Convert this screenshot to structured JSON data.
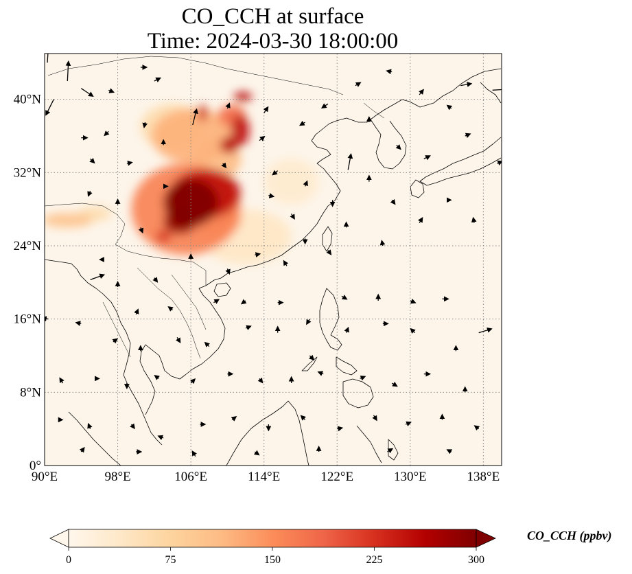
{
  "title": {
    "line1": "CO_CCH at surface",
    "line2": "Time: 2024-03-30 18:00:00"
  },
  "map": {
    "extent": {
      "lon_min": 90,
      "lon_max": 140,
      "lat_min": 0,
      "lat_max": 45
    },
    "lon_ticks": [
      {
        "value": 90,
        "label": "90°E"
      },
      {
        "value": 98,
        "label": "98°E"
      },
      {
        "value": 106,
        "label": "106°E"
      },
      {
        "value": 114,
        "label": "114°E"
      },
      {
        "value": 122,
        "label": "122°E"
      },
      {
        "value": 130,
        "label": "130°E"
      },
      {
        "value": 138,
        "label": "138°E"
      }
    ],
    "lat_ticks": [
      {
        "value": 0,
        "label": "0°"
      },
      {
        "value": 8,
        "label": "8°N"
      },
      {
        "value": 16,
        "label": "16°N"
      },
      {
        "value": 24,
        "label": "24°N"
      },
      {
        "value": 32,
        "label": "32°N"
      },
      {
        "value": 40,
        "label": "40°N"
      }
    ],
    "gridlines": true,
    "colors": {
      "background": "#fdf5ea",
      "grid": "#888888",
      "coast": "#000000",
      "vector": "#000000"
    },
    "pollution_patches": [
      {
        "lon": 106.0,
        "lat": 28.7,
        "value": 300,
        "rx": 3.0,
        "ry": 2.6
      },
      {
        "lon": 104.8,
        "lat": 26.6,
        "value": 285,
        "rx": 1.8,
        "ry": 1.3
      },
      {
        "lon": 107.6,
        "lat": 29.7,
        "value": 250,
        "rx": 3.8,
        "ry": 2.7
      },
      {
        "lon": 105.5,
        "lat": 28.0,
        "value": 160,
        "rx": 6.0,
        "ry": 5.0
      },
      {
        "lon": 109.0,
        "lat": 27.0,
        "value": 120,
        "rx": 2.5,
        "ry": 2.0
      },
      {
        "lon": 103.0,
        "lat": 25.0,
        "value": 230,
        "rx": 0.8,
        "ry": 0.6
      },
      {
        "lon": 106.2,
        "lat": 36.0,
        "value": 120,
        "rx": 4.5,
        "ry": 3.0
      },
      {
        "lon": 107.3,
        "lat": 38.5,
        "value": 240,
        "rx": 0.5,
        "ry": 0.9
      },
      {
        "lon": 111.4,
        "lat": 36.6,
        "value": 250,
        "rx": 1.0,
        "ry": 1.7
      },
      {
        "lon": 110.2,
        "lat": 35.0,
        "value": 260,
        "rx": 1.0,
        "ry": 0.9
      },
      {
        "lon": 110.5,
        "lat": 38.2,
        "value": 180,
        "rx": 1.5,
        "ry": 1.2
      },
      {
        "lon": 111.7,
        "lat": 40.3,
        "value": 260,
        "rx": 1.0,
        "ry": 0.5
      },
      {
        "lon": 109.0,
        "lat": 33.5,
        "value": 110,
        "rx": 2.5,
        "ry": 2.2
      },
      {
        "lon": 104.0,
        "lat": 37.0,
        "value": 60,
        "rx": 3.5,
        "ry": 2.5
      },
      {
        "lon": 92.5,
        "lat": 26.8,
        "value": 100,
        "rx": 2.8,
        "ry": 0.8
      },
      {
        "lon": 95.5,
        "lat": 27.5,
        "value": 60,
        "rx": 1.8,
        "ry": 0.8
      },
      {
        "lon": 117.0,
        "lat": 31.0,
        "value": 30,
        "rx": 3.0,
        "ry": 2.5
      },
      {
        "lon": 112.0,
        "lat": 25.0,
        "value": 40,
        "rx": 5.0,
        "ry": 3.0
      }
    ],
    "wind_vectors": [
      {
        "lon": 90.3,
        "lat": 44.0,
        "u": 0.1,
        "v": 1.5
      },
      {
        "lon": 91.0,
        "lat": 40.0,
        "u": -0.8,
        "v": -1.6
      },
      {
        "lon": 92.5,
        "lat": 42.0,
        "u": 0.1,
        "v": 2.0
      },
      {
        "lon": 94.0,
        "lat": 41.2,
        "u": 1.2,
        "v": -0.8
      },
      {
        "lon": 97.0,
        "lat": 41.0,
        "u": 0.5,
        "v": -0.2
      },
      {
        "lon": 100.5,
        "lat": 43.5,
        "u": 0.6,
        "v": 0.0
      },
      {
        "lon": 102.0,
        "lat": 42.0,
        "u": 0.6,
        "v": 0.3
      },
      {
        "lon": 94.0,
        "lat": 35.8,
        "u": 0.6,
        "v": 0.0
      },
      {
        "lon": 97.0,
        "lat": 36.5,
        "u": -0.4,
        "v": -0.4
      },
      {
        "lon": 101.0,
        "lat": 37.5,
        "u": -0.1,
        "v": -0.5
      },
      {
        "lon": 95.0,
        "lat": 33.5,
        "u": 0.4,
        "v": -0.4
      },
      {
        "lon": 99.0,
        "lat": 33.0,
        "u": 0.5,
        "v": 0.1
      },
      {
        "lon": 103.0,
        "lat": 35.0,
        "u": 0.0,
        "v": 0.5
      },
      {
        "lon": 106.2,
        "lat": 37.2,
        "u": 0.4,
        "v": 1.6
      },
      {
        "lon": 110.0,
        "lat": 39.0,
        "u": 0.2,
        "v": 0.5
      },
      {
        "lon": 114.0,
        "lat": 38.5,
        "u": 0.4,
        "v": 0.6
      },
      {
        "lon": 113.5,
        "lat": 35.5,
        "u": 0.5,
        "v": 0.4
      },
      {
        "lon": 115.5,
        "lat": 32.2,
        "u": -0.5,
        "v": -0.4
      },
      {
        "lon": 114.5,
        "lat": 29.5,
        "u": 0.5,
        "v": -0.1
      },
      {
        "lon": 109.5,
        "lat": 33.0,
        "u": 0.3,
        "v": -0.4
      },
      {
        "lon": 103.0,
        "lat": 30.5,
        "u": 0.4,
        "v": 0.0
      },
      {
        "lon": 95.0,
        "lat": 30.0,
        "u": -0.2,
        "v": -0.5
      },
      {
        "lon": 98.0,
        "lat": 28.5,
        "u": 0.0,
        "v": 0.5
      },
      {
        "lon": 100.5,
        "lat": 26.0,
        "u": 0.2,
        "v": -0.5
      },
      {
        "lon": 96.5,
        "lat": 22.5,
        "u": -0.4,
        "v": 0.0
      },
      {
        "lon": 95.0,
        "lat": 20.3,
        "u": 1.4,
        "v": 0.5
      },
      {
        "lon": 98.0,
        "lat": 19.5,
        "u": 0.0,
        "v": 0.5
      },
      {
        "lon": 102.0,
        "lat": 20.5,
        "u": 0.3,
        "v": -0.4
      },
      {
        "lon": 106.0,
        "lat": 22.5,
        "u": 0.0,
        "v": 0.5
      },
      {
        "lon": 110.0,
        "lat": 21.5,
        "u": 0.2,
        "v": -0.5
      },
      {
        "lon": 113.0,
        "lat": 23.0,
        "u": 0.5,
        "v": 0.1
      },
      {
        "lon": 116.5,
        "lat": 21.8,
        "u": -0.3,
        "v": 0.5
      },
      {
        "lon": 118.5,
        "lat": 24.8,
        "u": 0.0,
        "v": -0.5
      },
      {
        "lon": 117.0,
        "lat": 27.5,
        "u": 0.3,
        "v": -0.5
      },
      {
        "lon": 118.5,
        "lat": 30.5,
        "u": 0.2,
        "v": 0.5
      },
      {
        "lon": 121.5,
        "lat": 29.0,
        "u": 0.0,
        "v": -0.6
      },
      {
        "lon": 123.2,
        "lat": 32.3,
        "u": 0.3,
        "v": 1.6
      },
      {
        "lon": 123.0,
        "lat": 26.0,
        "u": 0.0,
        "v": 0.5
      },
      {
        "lon": 121.0,
        "lat": 23.5,
        "u": 0.3,
        "v": -0.4
      },
      {
        "lon": 127.0,
        "lat": 24.0,
        "u": -0.1,
        "v": 0.5
      },
      {
        "lon": 125.5,
        "lat": 31.0,
        "u": 0.0,
        "v": 0.6
      },
      {
        "lon": 128.0,
        "lat": 29.0,
        "u": 0.3,
        "v": -0.4
      },
      {
        "lon": 131.0,
        "lat": 26.5,
        "u": 0.3,
        "v": 0.5
      },
      {
        "lon": 134.0,
        "lat": 29.0,
        "u": 0.4,
        "v": 0.0
      },
      {
        "lon": 137.0,
        "lat": 26.5,
        "u": -0.1,
        "v": 0.5
      },
      {
        "lon": 139.5,
        "lat": 33.0,
        "u": 0.5,
        "v": 0.2
      },
      {
        "lon": 136.0,
        "lat": 36.0,
        "u": 0.5,
        "v": 0.2
      },
      {
        "lon": 134.5,
        "lat": 39.0,
        "u": -0.4,
        "v": 0.3
      },
      {
        "lon": 139.0,
        "lat": 41.0,
        "u": 1.6,
        "v": 0.1
      },
      {
        "lon": 135.5,
        "lat": 41.5,
        "u": 1.1,
        "v": 0.2
      },
      {
        "lon": 131.0,
        "lat": 40.5,
        "u": 0.4,
        "v": 0.5
      },
      {
        "lon": 128.0,
        "lat": 43.0,
        "u": -0.5,
        "v": 0.1
      },
      {
        "lon": 124.0,
        "lat": 41.5,
        "u": 0.5,
        "v": 0.3
      },
      {
        "lon": 121.0,
        "lat": 39.5,
        "u": -0.6,
        "v": -0.4
      },
      {
        "lon": 118.5,
        "lat": 37.5,
        "u": -0.5,
        "v": -0.3
      },
      {
        "lon": 125.5,
        "lat": 37.5,
        "u": 0.0,
        "v": 0.5
      },
      {
        "lon": 128.5,
        "lat": 35.0,
        "u": 0.4,
        "v": -0.4
      },
      {
        "lon": 131.5,
        "lat": 33.5,
        "u": 0.6,
        "v": 0.3
      },
      {
        "lon": 100.0,
        "lat": 16.5,
        "u": 0.2,
        "v": 0.5
      },
      {
        "lon": 104.0,
        "lat": 17.0,
        "u": -0.4,
        "v": 0.3
      },
      {
        "lon": 108.5,
        "lat": 17.8,
        "u": 0.5,
        "v": 0.3
      },
      {
        "lon": 112.0,
        "lat": 18.0,
        "u": -0.4,
        "v": -0.3
      },
      {
        "lon": 115.5,
        "lat": 17.8,
        "u": 0.5,
        "v": 0.0
      },
      {
        "lon": 119.0,
        "lat": 16.0,
        "u": -0.3,
        "v": -0.5
      },
      {
        "lon": 122.5,
        "lat": 18.5,
        "u": 0.5,
        "v": -0.3
      },
      {
        "lon": 126.5,
        "lat": 18.0,
        "u": 0.0,
        "v": 0.6
      },
      {
        "lon": 130.0,
        "lat": 18.0,
        "u": 0.5,
        "v": -0.2
      },
      {
        "lon": 133.5,
        "lat": 18.2,
        "u": 0.6,
        "v": 0.0
      },
      {
        "lon": 137.5,
        "lat": 14.5,
        "u": 1.3,
        "v": 0.4
      },
      {
        "lon": 135.0,
        "lat": 12.5,
        "u": 0.0,
        "v": 0.5
      },
      {
        "lon": 130.5,
        "lat": 14.5,
        "u": -0.4,
        "v": 0.4
      },
      {
        "lon": 127.0,
        "lat": 15.5,
        "u": 0.5,
        "v": 0.0
      },
      {
        "lon": 123.0,
        "lat": 14.5,
        "u": 0.2,
        "v": 0.5
      },
      {
        "lon": 119.0,
        "lat": 12.0,
        "u": 0.4,
        "v": -0.4
      },
      {
        "lon": 115.5,
        "lat": 14.5,
        "u": 0.0,
        "v": 0.6
      },
      {
        "lon": 112.0,
        "lat": 15.0,
        "u": 0.5,
        "v": 0.2
      },
      {
        "lon": 108.0,
        "lat": 13.0,
        "u": -0.4,
        "v": 0.4
      },
      {
        "lon": 104.5,
        "lat": 14.0,
        "u": 0.3,
        "v": -0.5
      },
      {
        "lon": 100.5,
        "lat": 12.5,
        "u": 0.0,
        "v": 0.5
      },
      {
        "lon": 97.5,
        "lat": 13.5,
        "u": 0.4,
        "v": 0.3
      },
      {
        "lon": 94.0,
        "lat": 15.5,
        "u": -0.5,
        "v": 0.1
      },
      {
        "lon": 90.4,
        "lat": 16.0,
        "u": -0.6,
        "v": 0.1
      },
      {
        "lon": 92.0,
        "lat": 9.0,
        "u": -0.3,
        "v": 0.5
      },
      {
        "lon": 95.5,
        "lat": 9.5,
        "u": 0.4,
        "v": 0.0
      },
      {
        "lon": 99.0,
        "lat": 9.0,
        "u": 0.0,
        "v": -0.5
      },
      {
        "lon": 102.5,
        "lat": 9.5,
        "u": -0.4,
        "v": 0.3
      },
      {
        "lon": 106.0,
        "lat": 9.0,
        "u": 0.4,
        "v": 0.4
      },
      {
        "lon": 110.0,
        "lat": 10.0,
        "u": 0.5,
        "v": 0.0
      },
      {
        "lon": 113.5,
        "lat": 9.5,
        "u": 0.3,
        "v": -0.4
      },
      {
        "lon": 117.0,
        "lat": 9.0,
        "u": 0.0,
        "v": 0.6
      },
      {
        "lon": 120.5,
        "lat": 10.0,
        "u": -0.5,
        "v": 0.2
      },
      {
        "lon": 124.5,
        "lat": 9.5,
        "u": 0.5,
        "v": 0.2
      },
      {
        "lon": 128.0,
        "lat": 9.0,
        "u": 0.5,
        "v": -0.3
      },
      {
        "lon": 131.5,
        "lat": 10.0,
        "u": 0.6,
        "v": 0.0
      },
      {
        "lon": 136.0,
        "lat": 8.0,
        "u": 0.0,
        "v": 0.5
      },
      {
        "lon": 91.5,
        "lat": 5.0,
        "u": 0.4,
        "v": 0.0
      },
      {
        "lon": 95.0,
        "lat": 4.0,
        "u": -0.2,
        "v": 0.5
      },
      {
        "lon": 99.5,
        "lat": 4.5,
        "u": 0.3,
        "v": -0.4
      },
      {
        "lon": 103.0,
        "lat": 3.0,
        "u": -0.5,
        "v": 0.2
      },
      {
        "lon": 107.0,
        "lat": 4.5,
        "u": 0.5,
        "v": 0.0
      },
      {
        "lon": 110.5,
        "lat": 5.0,
        "u": 0.4,
        "v": 0.3
      },
      {
        "lon": 114.5,
        "lat": 4.5,
        "u": 0.0,
        "v": -0.6
      },
      {
        "lon": 118.5,
        "lat": 5.0,
        "u": -0.4,
        "v": 0.4
      },
      {
        "lon": 122.0,
        "lat": 4.0,
        "u": 0.5,
        "v": 0.1
      },
      {
        "lon": 126.0,
        "lat": 5.5,
        "u": 0.3,
        "v": -0.5
      },
      {
        "lon": 129.5,
        "lat": 4.5,
        "u": 0.5,
        "v": 0.2
      },
      {
        "lon": 133.5,
        "lat": 5.0,
        "u": 0.0,
        "v": 0.5
      },
      {
        "lon": 137.5,
        "lat": 4.0,
        "u": -0.4,
        "v": 0.3
      },
      {
        "lon": 94.0,
        "lat": 1.5,
        "u": 0.3,
        "v": 0.4
      },
      {
        "lon": 100.0,
        "lat": 1.5,
        "u": 0.5,
        "v": 0.0
      },
      {
        "lon": 106.5,
        "lat": 1.0,
        "u": -0.3,
        "v": 0.5
      },
      {
        "lon": 113.0,
        "lat": 1.5,
        "u": 0.4,
        "v": -0.3
      },
      {
        "lon": 120.0,
        "lat": 1.5,
        "u": 0.0,
        "v": 0.5
      },
      {
        "lon": 127.5,
        "lat": 1.5,
        "u": 0.5,
        "v": 0.3
      },
      {
        "lon": 134.5,
        "lat": 1.5,
        "u": -0.4,
        "v": 0.2
      }
    ]
  },
  "colorbar": {
    "title": "CO_CCH (ppbv)",
    "min": 0,
    "max": 300,
    "ticks": [
      {
        "value": 0,
        "label": "0"
      },
      {
        "value": 75,
        "label": "75"
      },
      {
        "value": 150,
        "label": "150"
      },
      {
        "value": 225,
        "label": "225"
      },
      {
        "value": 300,
        "label": "300"
      }
    ],
    "extend": "both",
    "colormap": "OrRd",
    "color_stops": [
      "#fff7ec",
      "#fee8c8",
      "#fdd49e",
      "#fdbb84",
      "#fc8d59",
      "#ef6548",
      "#d7301f",
      "#b30000",
      "#7f0000"
    ]
  }
}
